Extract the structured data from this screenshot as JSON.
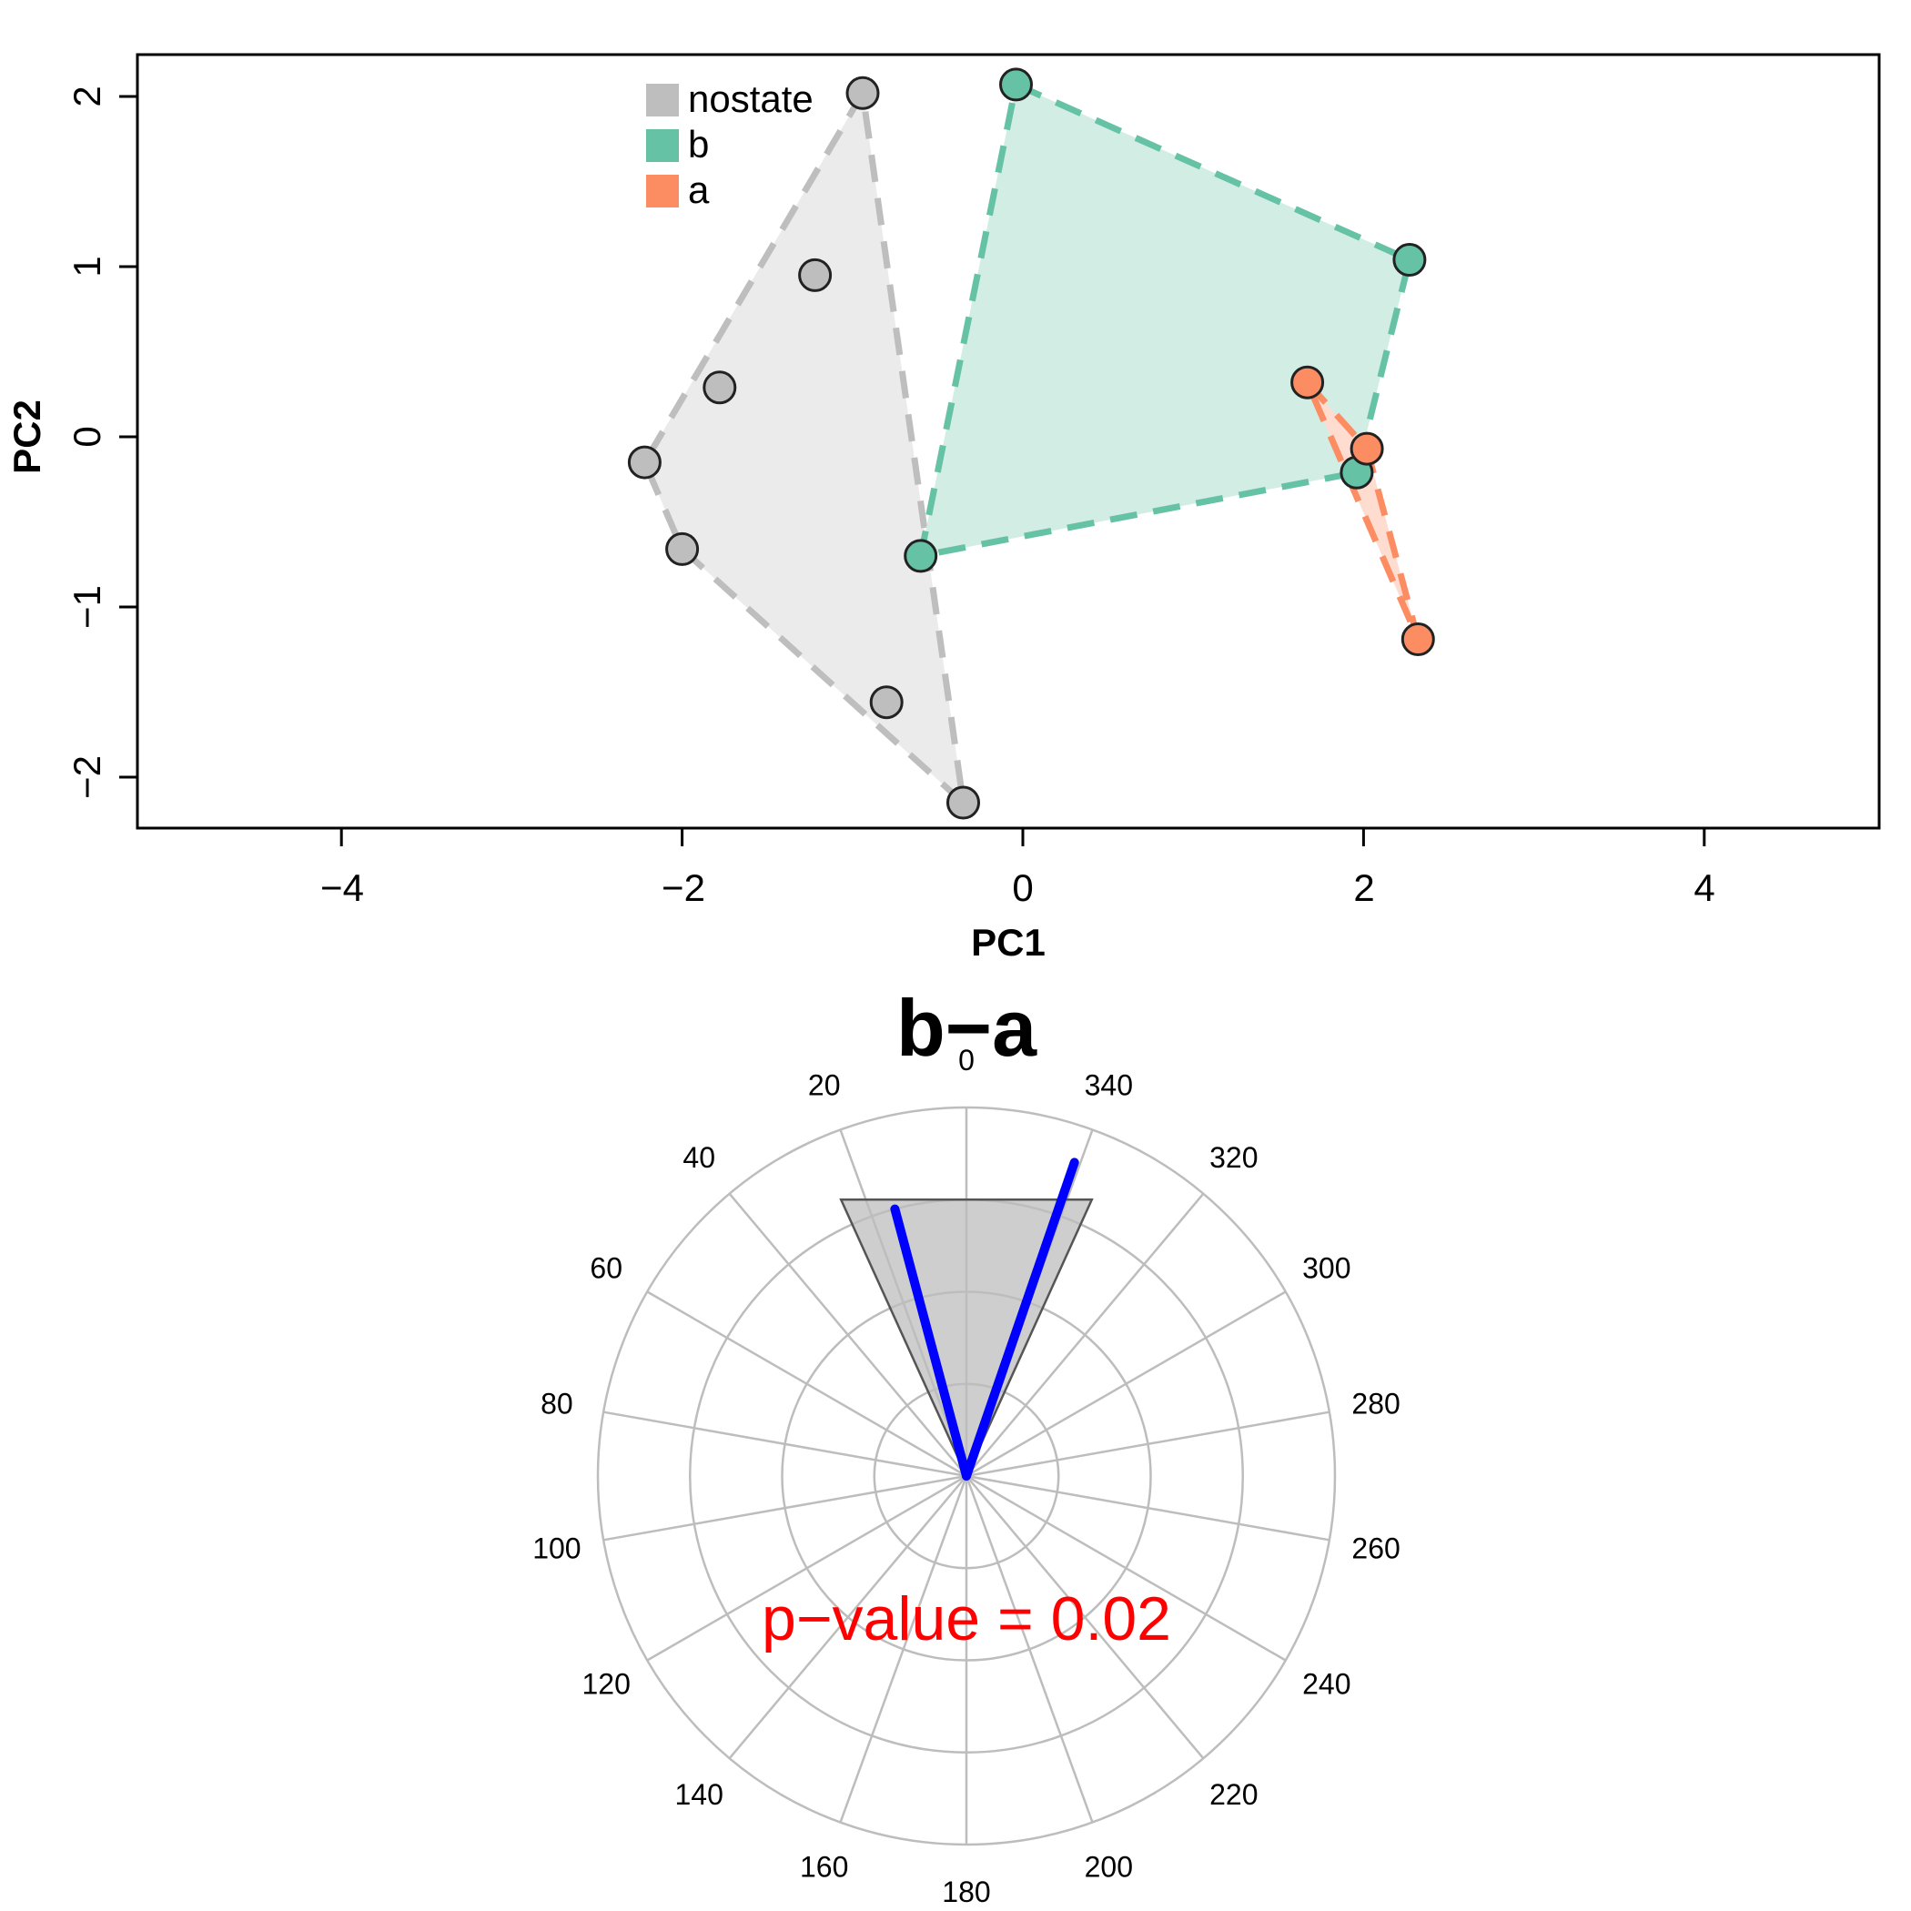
{
  "chart_data": [
    {
      "type": "scatter",
      "xlabel": "PC1",
      "ylabel": "PC2",
      "xlim": [
        -5,
        5
      ],
      "ylim": [
        -2.3,
        2.25
      ],
      "xticks": [
        "−4",
        "−2",
        "0",
        "2",
        "4"
      ],
      "xtick_values": [
        -4,
        -2,
        0,
        2,
        4
      ],
      "yticks": [
        "−2",
        "−1",
        "0",
        "1",
        "2"
      ],
      "ytick_values": [
        -2,
        -1,
        0,
        1,
        2
      ],
      "grid": false,
      "legend_placement": "top-center",
      "legend": [
        "nostate",
        "b",
        "a"
      ],
      "series": [
        {
          "name": "nostate",
          "color": "#BEBEBE",
          "fill": "#EBEBEB",
          "points": [
            [
              -0.94,
              2.02
            ],
            [
              -1.22,
              0.95
            ],
            [
              -1.78,
              0.29
            ],
            [
              -2.22,
              -0.15
            ],
            [
              -2.0,
              -0.66
            ],
            [
              -0.8,
              -1.56
            ],
            [
              -0.35,
              -2.15
            ]
          ],
          "hull": [
            [
              -0.94,
              2.02
            ],
            [
              -2.22,
              -0.15
            ],
            [
              -2.0,
              -0.66
            ],
            [
              -0.35,
              -2.15
            ]
          ]
        },
        {
          "name": "b",
          "color": "#66C2A5",
          "fill": "#D1EDE4",
          "points": [
            [
              -0.04,
              2.07
            ],
            [
              2.27,
              1.04
            ],
            [
              1.96,
              -0.21
            ],
            [
              -0.6,
              -0.7
            ]
          ],
          "hull": [
            [
              -0.04,
              2.07
            ],
            [
              2.27,
              1.04
            ],
            [
              1.96,
              -0.21
            ],
            [
              -0.6,
              -0.7
            ]
          ]
        },
        {
          "name": "a",
          "color": "#FC8D62",
          "fill": "#FEDDD0",
          "points": [
            [
              1.67,
              0.32
            ],
            [
              2.02,
              -0.07
            ],
            [
              2.32,
              -1.19
            ]
          ],
          "hull": [
            [
              1.67,
              0.32
            ],
            [
              2.02,
              -0.07
            ],
            [
              2.32,
              -1.19
            ]
          ]
        }
      ]
    },
    {
      "type": "polar",
      "title": "b−a",
      "annotation": "p−value =  0.02",
      "annotation_color": "#FF0000",
      "angle_labels": [
        "0",
        "20",
        "40",
        "60",
        "80",
        "100",
        "120",
        "140",
        "160",
        "180",
        "200",
        "220",
        "240",
        "260",
        "280",
        "300",
        "320",
        "340"
      ],
      "angle_values": [
        0,
        20,
        40,
        60,
        80,
        100,
        120,
        140,
        160,
        180,
        200,
        220,
        240,
        260,
        280,
        300,
        320,
        340
      ],
      "angle_direction": "counterclockwise",
      "rings": 4,
      "confidence_region": {
        "from_deg": 20,
        "to_deg": 340,
        "radius": 3,
        "color": "#BEBEBE"
      },
      "vectors": [
        {
          "angle_deg": 15,
          "length": 3.0,
          "color": "#0000FF"
        },
        {
          "angle_deg": 341,
          "length": 3.6,
          "color": "#0000FF"
        }
      ]
    }
  ]
}
